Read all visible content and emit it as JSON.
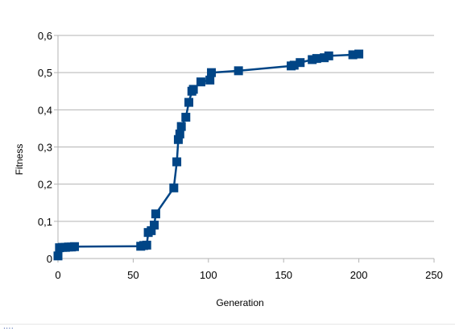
{
  "chart_data": {
    "type": "scatter",
    "title": "",
    "xlabel": "Generation",
    "ylabel": "Fitness",
    "xlim": [
      0,
      250
    ],
    "ylim": [
      0,
      0.6
    ],
    "xticks": [
      "0",
      "50",
      "100",
      "150",
      "200",
      "250"
    ],
    "yticks": [
      "0",
      "0,1",
      "0,2",
      "0,3",
      "0,4",
      "0,5",
      "0,6"
    ],
    "grid": "horizontal",
    "legend": "none",
    "color": "#004586",
    "series": [
      {
        "x": [
          0,
          1,
          3,
          5,
          7,
          9,
          11,
          55,
          57,
          59,
          60,
          62,
          64,
          65,
          77,
          79,
          80,
          81,
          82,
          85,
          87,
          89,
          90,
          95,
          101,
          102,
          120,
          155,
          157,
          161,
          169,
          172,
          177,
          180,
          196,
          200
        ],
        "y": [
          0.007,
          0.029,
          0.03,
          0.03,
          0.031,
          0.031,
          0.032,
          0.033,
          0.035,
          0.036,
          0.07,
          0.075,
          0.09,
          0.12,
          0.19,
          0.26,
          0.32,
          0.335,
          0.355,
          0.38,
          0.42,
          0.45,
          0.455,
          0.475,
          0.48,
          0.5,
          0.505,
          0.518,
          0.52,
          0.527,
          0.535,
          0.538,
          0.54,
          0.545,
          0.548,
          0.55
        ]
      }
    ]
  },
  "footer_fragment": "...."
}
